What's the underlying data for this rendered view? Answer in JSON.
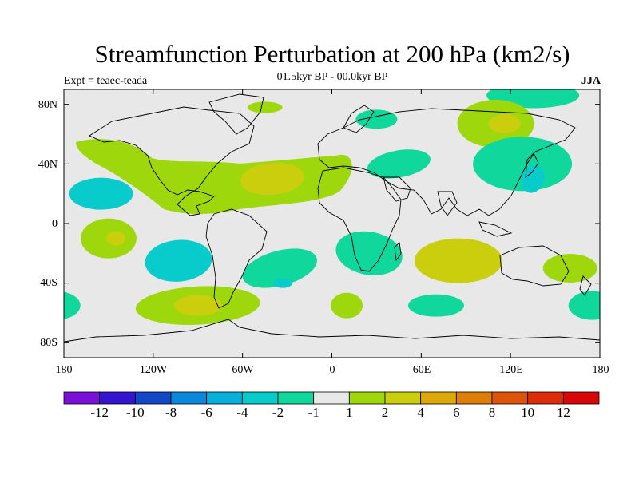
{
  "title": "Streamfunction Perturbation at 200 hPa (km2/s)",
  "subtitle": "01.5kyr BP - 00.0kyr BP",
  "experiment": "Expt = teaec-teada",
  "season": "JJA",
  "chart_data": {
    "type": "contour-map",
    "projection": "cylindrical-equidistant",
    "lon_range": [
      -180,
      180
    ],
    "lat_range": [
      -90,
      90
    ],
    "x_ticks": [
      "180",
      "120W",
      "60W",
      "0",
      "60E",
      "120E",
      "180"
    ],
    "y_ticks": [
      "80N",
      "40N",
      "0",
      "40S",
      "80S"
    ],
    "colorbar": {
      "levels": [
        "-12",
        "-10",
        "-8",
        "-6",
        "-4",
        "-2",
        "-1",
        "1",
        "2",
        "4",
        "6",
        "8",
        "10",
        "12"
      ],
      "colors": [
        "#7a10d8",
        "#3414d0",
        "#1048c8",
        "#0a88dc",
        "#06b0dc",
        "#08cccc",
        "#10d89c",
        "#e8e8e8",
        "#9ed80c",
        "#cace0c",
        "#dca80a",
        "#de7e08",
        "#de540a",
        "#dc2c0a",
        "#d80606"
      ]
    },
    "features": [
      {
        "level": "-1",
        "kind": "negative",
        "region": "Arctic (eastern Siberia)",
        "lon": 135,
        "lat": 86
      },
      {
        "level": "1",
        "kind": "positive",
        "region": "North Atlantic / Greenland",
        "lon": -45,
        "lat": 78
      },
      {
        "level": "1",
        "kind": "positive",
        "region": "Western Siberia",
        "lon": 110,
        "lat": 67
      },
      {
        "level": "2",
        "kind": "positive",
        "region": "Western Siberia core",
        "lon": 116,
        "lat": 67
      },
      {
        "level": "-1",
        "kind": "negative",
        "region": "Barents / North Europe",
        "lon": 30,
        "lat": 70
      },
      {
        "level": "1",
        "kind": "positive",
        "region": "Subtropical North Atlantic band",
        "lon": -70,
        "lat": 35
      },
      {
        "level": "2",
        "kind": "positive",
        "region": "Central North Atlantic",
        "lon": -40,
        "lat": 30
      },
      {
        "level": "-2",
        "kind": "negative",
        "region": "Central North Pacific",
        "lon": -155,
        "lat": 20
      },
      {
        "level": "-1",
        "kind": "negative",
        "region": "East Asia / NW Pacific",
        "lon": 128,
        "lat": 40
      },
      {
        "level": "-2",
        "kind": "negative",
        "region": "Korea / Japan",
        "lon": 135,
        "lat": 30
      },
      {
        "level": "-1",
        "kind": "negative",
        "region": "Arabia / Middle East",
        "lon": 45,
        "lat": 40
      },
      {
        "level": "1",
        "kind": "positive",
        "region": "Subtropical South Pacific",
        "lon": -150,
        "lat": -10
      },
      {
        "level": "2",
        "kind": "positive",
        "region": "Subtropical South Pacific core",
        "lon": -145,
        "lat": -10
      },
      {
        "level": "-2",
        "kind": "negative",
        "region": "Southeast Pacific",
        "lon": -103,
        "lat": -25
      },
      {
        "level": "-1",
        "kind": "negative",
        "region": "South Atlantic",
        "lon": -35,
        "lat": -30
      },
      {
        "level": "-2",
        "kind": "negative",
        "region": "South Atlantic core",
        "lon": -33,
        "lat": -40
      },
      {
        "level": "-1",
        "kind": "negative",
        "region": "Southern Africa",
        "lon": 25,
        "lat": -20
      },
      {
        "level": "2",
        "kind": "positive",
        "region": "South Indian Ocean",
        "lon": 85,
        "lat": -25
      },
      {
        "level": "1",
        "kind": "positive",
        "region": "Southern Ocean south of South America",
        "lon": -90,
        "lat": -55
      },
      {
        "level": "2",
        "kind": "positive",
        "region": "Southern Ocean core",
        "lon": -90,
        "lat": -55
      },
      {
        "level": "1",
        "kind": "positive",
        "region": "South Atlantic (near Africa)",
        "lon": 10,
        "lat": -55
      },
      {
        "level": "-1",
        "kind": "negative",
        "region": "Southern Indian Ocean",
        "lon": 70,
        "lat": -55
      },
      {
        "level": "-1",
        "kind": "negative",
        "region": "Southwest Pacific",
        "lon": 175,
        "lat": -55
      },
      {
        "level": "1",
        "kind": "positive",
        "region": "Tasman Sea",
        "lon": 160,
        "lat": -30
      }
    ]
  }
}
